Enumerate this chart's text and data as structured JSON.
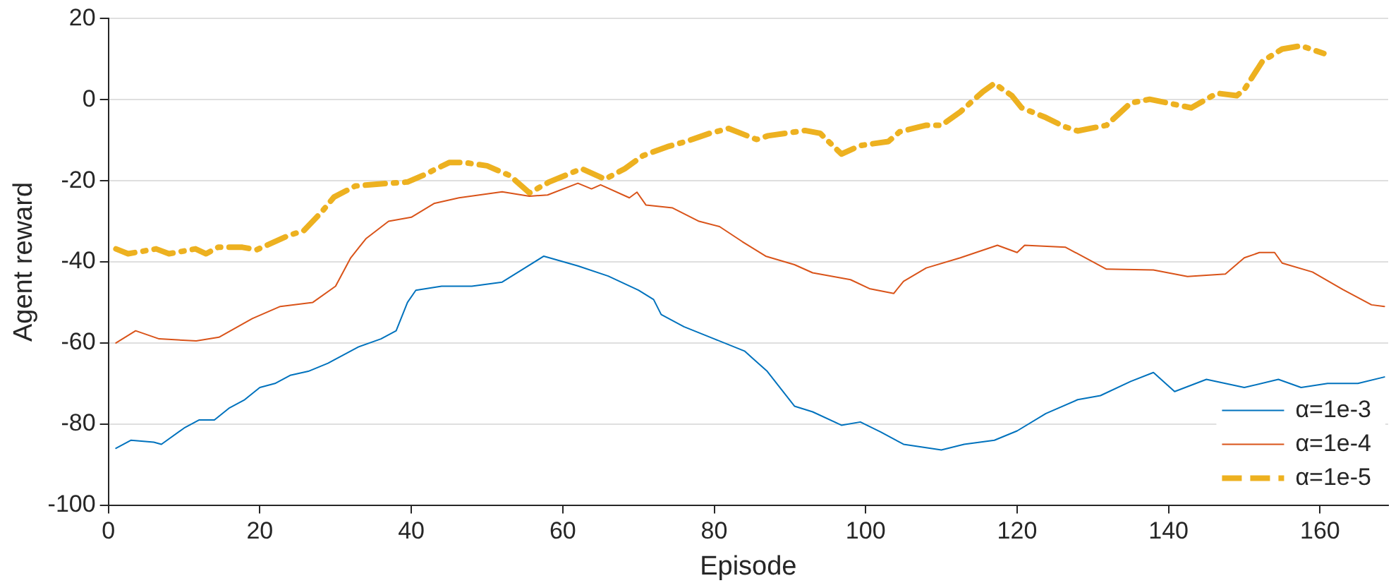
{
  "chart_data": {
    "type": "line",
    "xlabel": "Episode",
    "ylabel": "Agent reward",
    "xlim": [
      0,
      169
    ],
    "xticks": [
      0,
      20,
      40,
      60,
      80,
      100,
      120,
      140,
      160
    ],
    "ylim": [
      -100,
      20
    ],
    "yticks": [
      -100,
      -80,
      -60,
      -40,
      -20,
      0,
      20
    ],
    "grid": "y",
    "legend": "bottom right",
    "marker": "none",
    "series": [
      {
        "name": "α=1e-3",
        "color": "#0072bd",
        "line_style": "solid",
        "x": [
          1,
          3,
          6,
          7,
          10,
          12,
          14,
          16,
          18,
          20,
          22,
          24,
          26.4,
          29,
          31,
          33,
          36,
          38,
          39.5,
          40.6,
          44,
          48,
          52,
          55,
          57.5,
          62,
          66,
          70,
          72,
          73,
          76,
          80,
          84,
          87,
          90.6,
          93,
          96.8,
          99.3,
          102,
          105,
          110,
          113,
          117,
          120,
          123.8,
          128,
          131,
          135,
          138,
          140.8,
          145,
          150,
          154.5,
          157.5,
          161,
          165,
          168.5
        ],
        "values": [
          -86,
          -84,
          -84.5,
          -85,
          -81,
          -79,
          -79,
          -76,
          -74,
          -71,
          -70,
          -68,
          -67,
          -65,
          -63,
          -61,
          -59,
          -57,
          -50,
          -47,
          -46,
          -46,
          -45,
          -41.5,
          -38.6,
          -41,
          -43.5,
          -47,
          -49.3,
          -53,
          -56,
          -59,
          -62,
          -67,
          -75.6,
          -77,
          -80.3,
          -79.5,
          -82,
          -85,
          -86.4,
          -85,
          -84,
          -81.7,
          -77.4,
          -74,
          -73,
          -69.5,
          -67.3,
          -72,
          -69,
          -71,
          -69,
          -71,
          -70,
          -70,
          -68.4
        ]
      },
      {
        "name": "α=1e-4",
        "color": "#d95319",
        "line_style": "solid",
        "x": [
          1,
          3.6,
          6.7,
          11.6,
          14.6,
          19,
          22.7,
          27,
          30,
          32,
          34,
          37,
          40,
          43,
          46.3,
          52,
          55.6,
          58,
          62,
          63.8,
          65,
          68.8,
          69.8,
          71,
          74.5,
          78,
          80.7,
          83.7,
          86.8,
          90.6,
          93,
          98,
          100.5,
          103.7,
          105,
          108,
          112.5,
          117.4,
          120,
          121,
          126.4,
          131.8,
          138,
          142.5,
          147.5,
          150,
          152,
          154,
          155,
          159,
          163,
          166.8,
          168.5
        ],
        "values": [
          -60,
          -57,
          -59,
          -59.5,
          -58.6,
          -54,
          -51,
          -50,
          -46,
          -39,
          -34.3,
          -30,
          -29,
          -25.6,
          -24.2,
          -22.7,
          -23.8,
          -23.5,
          -20.6,
          -22,
          -21,
          -24.2,
          -22.8,
          -26,
          -26.7,
          -30,
          -31.3,
          -35,
          -38.6,
          -40.7,
          -42.7,
          -44.4,
          -46.6,
          -47.8,
          -44.8,
          -41.5,
          -39,
          -35.9,
          -37.7,
          -35.9,
          -36.4,
          -41.8,
          -42,
          -43.6,
          -43,
          -39,
          -37.7,
          -37.7,
          -40.3,
          -42.5,
          -46.8,
          -50.6,
          -51
        ]
      },
      {
        "name": "α=1e-5",
        "color": "#edb120",
        "line_style": "dashed",
        "x": [
          1,
          2.6,
          6.3,
          8,
          11.5,
          12.9,
          14.5,
          17.7,
          19.6,
          23.8,
          25.8,
          28.3,
          29.8,
          32.6,
          35.7,
          39.5,
          41.5,
          45,
          47,
          50,
          53,
          55.6,
          58.2,
          62.5,
          65.6,
          68.2,
          70.6,
          73.8,
          76.3,
          79.4,
          81.9,
          85.6,
          87.1,
          92,
          94,
          96.8,
          99.3,
          103,
          104.5,
          108,
          110,
          112.5,
          115.5,
          117,
          119.3,
          120.6,
          123.8,
          126.2,
          128,
          131.8,
          135,
          137.5,
          141.2,
          143,
          146.4,
          149,
          150,
          152.4,
          155,
          157.5,
          160.5
        ],
        "values": [
          -36.8,
          -38,
          -36.8,
          -38,
          -36.8,
          -38,
          -36.4,
          -36.4,
          -37,
          -33.5,
          -32.3,
          -27.4,
          -24,
          -21.3,
          -20.8,
          -20.3,
          -18.7,
          -15.5,
          -15.5,
          -16.3,
          -18.7,
          -23,
          -20.3,
          -17,
          -19.6,
          -17,
          -13.8,
          -11.6,
          -10.3,
          -8.3,
          -7.1,
          -9.8,
          -8.9,
          -7.6,
          -8.3,
          -13.4,
          -11.3,
          -10.3,
          -7.9,
          -6.3,
          -6.3,
          -3,
          2,
          4,
          1,
          -2,
          -4.4,
          -6.6,
          -7.7,
          -6.3,
          -0.8,
          0.1,
          -1.3,
          -2,
          1.6,
          1,
          2.5,
          9.5,
          12.5,
          13.3,
          11.4
        ]
      }
    ]
  }
}
